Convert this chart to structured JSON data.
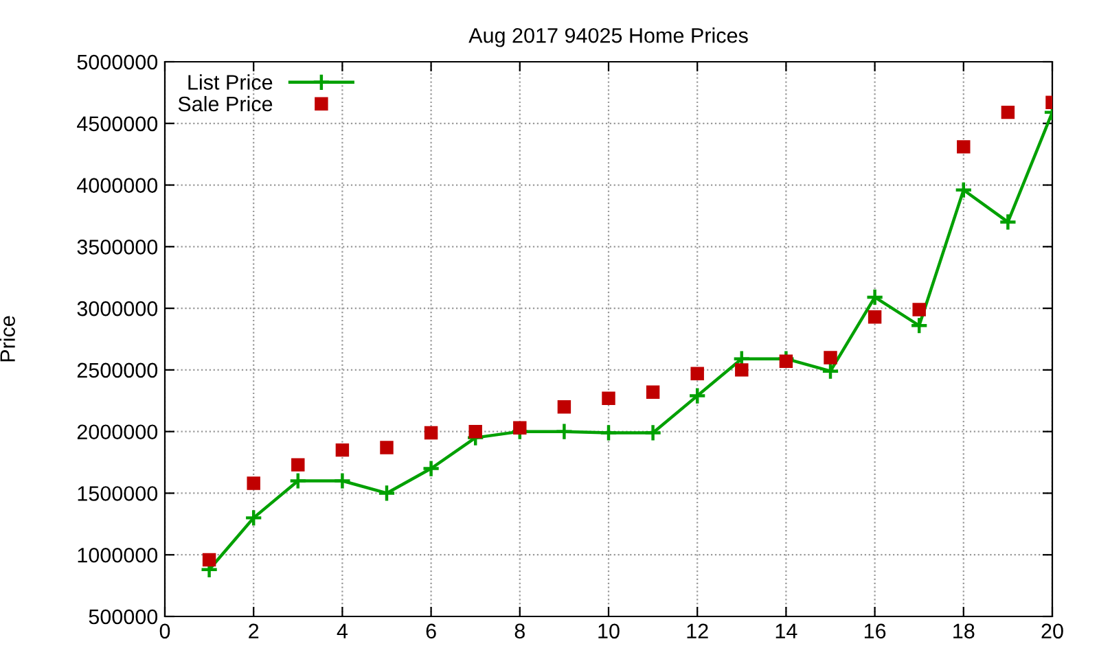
{
  "chart_data": {
    "type": "line",
    "title": "Aug 2017 94025 Home Prices",
    "ylabel": "Price",
    "x": [
      1,
      2,
      3,
      4,
      5,
      6,
      7,
      8,
      9,
      10,
      11,
      12,
      13,
      14,
      15,
      16,
      17,
      18,
      19,
      20
    ],
    "series": [
      {
        "name": "List Price",
        "color": "#00a000",
        "marker": "cross",
        "values": [
          880000,
          1300000,
          1600000,
          1600000,
          1500000,
          1700000,
          1950000,
          2000000,
          2000000,
          1990000,
          1990000,
          2290000,
          2590000,
          2590000,
          2490000,
          3090000,
          2860000,
          3960000,
          3700000,
          4590000
        ]
      },
      {
        "name": "Sale Price",
        "type": "scatter",
        "color": "#c00000",
        "marker": "square",
        "values": [
          960000,
          1580000,
          1730000,
          1850000,
          1870000,
          1990000,
          2000000,
          2030000,
          2200000,
          2270000,
          2320000,
          2470000,
          2500000,
          2570000,
          2600000,
          2930000,
          2990000,
          4310000,
          4590000,
          4670000
        ]
      }
    ],
    "xlim": [
      0,
      20
    ],
    "xticks": [
      0,
      2,
      4,
      6,
      8,
      10,
      12,
      14,
      16,
      18,
      20
    ],
    "ylim": [
      500000,
      5000000
    ],
    "yticks": [
      500000,
      1000000,
      1500000,
      2000000,
      2500000,
      3000000,
      3500000,
      4000000,
      4500000,
      5000000
    ],
    "grid": true,
    "legend": "top left",
    "line_style": "solid"
  }
}
